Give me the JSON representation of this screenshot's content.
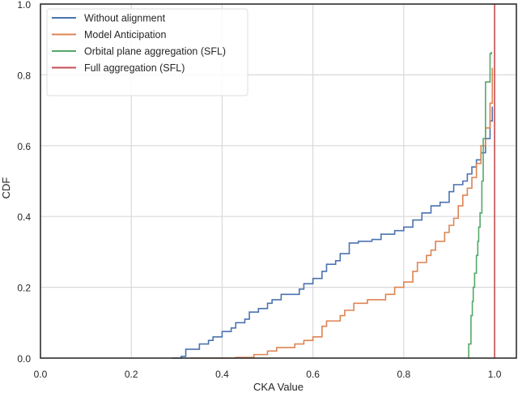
{
  "chart_data": {
    "type": "line",
    "title": "",
    "xlabel": "CKA Value",
    "ylabel": "CDF",
    "xlim": [
      0.0,
      1.048
    ],
    "ylim": [
      0.0,
      1.0
    ],
    "grid": true,
    "legend_placement": "top-left",
    "xticks": [
      "0.0",
      "0.2",
      "0.4",
      "0.6",
      "0.8",
      "1.0"
    ],
    "yticks": [
      "0.0",
      "0.2",
      "0.4",
      "0.6",
      "0.8",
      "1.0"
    ],
    "series": [
      {
        "name": "Without alignment",
        "color": "#4c72b0",
        "x": [
          0.29,
          0.31,
          0.32,
          0.35,
          0.37,
          0.38,
          0.4,
          0.42,
          0.43,
          0.45,
          0.46,
          0.48,
          0.5,
          0.51,
          0.53,
          0.57,
          0.58,
          0.6,
          0.62,
          0.63,
          0.65,
          0.66,
          0.68,
          0.7,
          0.73,
          0.75,
          0.78,
          0.8,
          0.82,
          0.84,
          0.86,
          0.88,
          0.9,
          0.91,
          0.93,
          0.94,
          0.95,
          0.96,
          0.97,
          0.98,
          0.99,
          0.995
        ],
        "y": [
          0,
          0.005,
          0.025,
          0.04,
          0.05,
          0.06,
          0.075,
          0.085,
          0.1,
          0.11,
          0.13,
          0.14,
          0.155,
          0.165,
          0.18,
          0.195,
          0.21,
          0.225,
          0.245,
          0.265,
          0.275,
          0.295,
          0.325,
          0.33,
          0.335,
          0.35,
          0.36,
          0.37,
          0.39,
          0.41,
          0.43,
          0.44,
          0.47,
          0.49,
          0.5,
          0.52,
          0.54,
          0.56,
          0.58,
          0.62,
          0.67,
          0.71
        ]
      },
      {
        "name": "Model Anticipation",
        "color": "#dd8452",
        "x": [
          0.33,
          0.43,
          0.47,
          0.5,
          0.52,
          0.56,
          0.58,
          0.6,
          0.62,
          0.63,
          0.66,
          0.67,
          0.69,
          0.72,
          0.76,
          0.78,
          0.8,
          0.82,
          0.83,
          0.85,
          0.86,
          0.87,
          0.89,
          0.9,
          0.91,
          0.92,
          0.93,
          0.94,
          0.95,
          0.96,
          0.97,
          0.98,
          0.99,
          0.995
        ],
        "y": [
          0,
          0.002,
          0.01,
          0.02,
          0.03,
          0.04,
          0.05,
          0.06,
          0.09,
          0.105,
          0.12,
          0.135,
          0.155,
          0.165,
          0.18,
          0.2,
          0.215,
          0.245,
          0.27,
          0.29,
          0.305,
          0.33,
          0.355,
          0.375,
          0.395,
          0.43,
          0.46,
          0.48,
          0.51,
          0.55,
          0.6,
          0.65,
          0.72,
          0.82
        ]
      },
      {
        "name": "Orbital plane aggregation (SFL)",
        "color": "#55a868",
        "x": [
          0.943,
          0.943,
          0.948,
          0.951,
          0.953,
          0.956,
          0.96,
          0.963,
          0.965,
          0.968,
          0.972,
          0.975,
          0.98,
          0.99,
          0.993
        ],
        "y": [
          0,
          0.04,
          0.12,
          0.16,
          0.2,
          0.24,
          0.29,
          0.33,
          0.37,
          0.41,
          0.5,
          0.62,
          0.78,
          0.86,
          0.865
        ]
      },
      {
        "name": "Full aggregation (SFL)",
        "color": "#c44e52",
        "x": [
          1.0,
          1.0
        ],
        "y": [
          0,
          1.0
        ]
      }
    ]
  }
}
